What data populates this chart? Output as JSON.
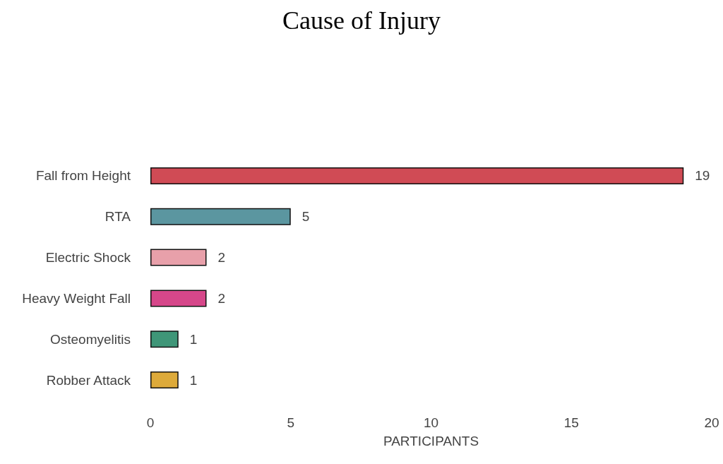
{
  "chart_data": {
    "type": "bar",
    "orientation": "horizontal",
    "title": "Cause of Injury",
    "xlabel": "PARTICIPANTS",
    "categories": [
      "Fall from Height",
      "RTA",
      "Electric Shock",
      "Heavy Weight Fall",
      "Osteomyelitis",
      "Robber Attack"
    ],
    "values": [
      19,
      5,
      2,
      2,
      1,
      1
    ],
    "colors": [
      "#d04b55",
      "#5b96a0",
      "#e8a0aa",
      "#d6478a",
      "#3f9678",
      "#ddaa3a"
    ],
    "xlim": [
      0,
      20
    ],
    "xticks": [
      0,
      5,
      10,
      15,
      20
    ],
    "grid": false,
    "data_labels": true
  }
}
